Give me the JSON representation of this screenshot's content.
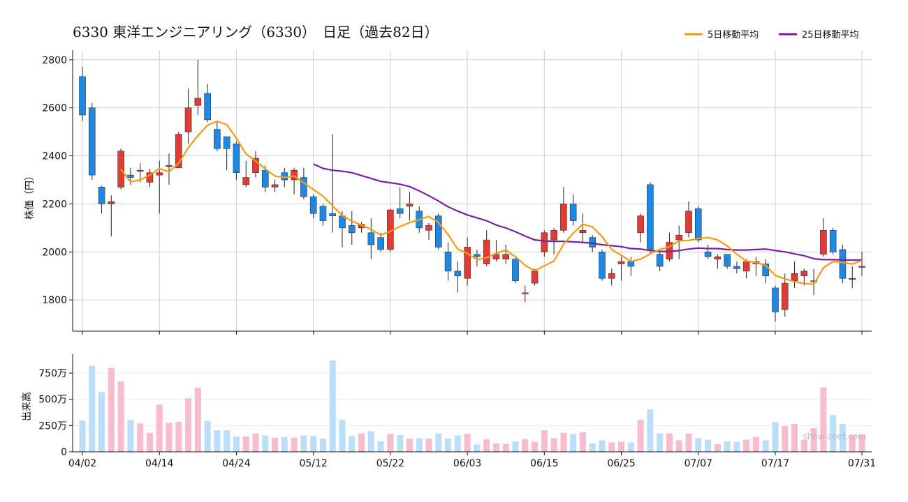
{
  "chart_data": [
    {
      "type": "candlestick",
      "title": "6330 東洋エンジニアリング（6330）　日足（過去82日）",
      "ylabel": "株価（円）",
      "ylim": [
        1670,
        2840
      ],
      "yticks": [
        1800,
        2000,
        2200,
        2400,
        2600,
        2800
      ],
      "grid": true,
      "legend_position": "top-right",
      "x_tick_labels": [
        "04/02",
        "04/14",
        "04/24",
        "05/12",
        "05/22",
        "06/03",
        "06/15",
        "06/25",
        "07/07",
        "07/17",
        "07/31"
      ],
      "x_tick_index": [
        0,
        8,
        16,
        24,
        32,
        40,
        48,
        56,
        64,
        72,
        81
      ],
      "colors": {
        "up": "#e53935",
        "down": "#1e88e5",
        "ma5": "#f39c12",
        "ma25": "#7b1fa2"
      },
      "candles": [
        [
          2730,
          2770,
          2545,
          2570
        ],
        [
          2600,
          2620,
          2300,
          2320
        ],
        [
          2270,
          2275,
          2160,
          2200
        ],
        [
          2200,
          2235,
          2065,
          2210
        ],
        [
          2270,
          2430,
          2260,
          2420
        ],
        [
          2320,
          2350,
          2280,
          2310
        ],
        [
          2340,
          2370,
          2290,
          2340
        ],
        [
          2290,
          2345,
          2270,
          2330
        ],
        [
          2320,
          2380,
          2160,
          2330
        ],
        [
          2360,
          2410,
          2280,
          2360
        ],
        [
          2350,
          2500,
          2350,
          2490
        ],
        [
          2500,
          2680,
          2450,
          2600
        ],
        [
          2610,
          2800,
          2570,
          2640
        ],
        [
          2660,
          2700,
          2540,
          2550
        ],
        [
          2510,
          2540,
          2420,
          2430
        ],
        [
          2480,
          2480,
          2340,
          2430
        ],
        [
          2450,
          2460,
          2300,
          2330
        ],
        [
          2280,
          2380,
          2270,
          2310
        ],
        [
          2330,
          2420,
          2310,
          2390
        ],
        [
          2340,
          2360,
          2250,
          2270
        ],
        [
          2270,
          2300,
          2250,
          2280
        ],
        [
          2330,
          2350,
          2270,
          2300
        ],
        [
          2300,
          2350,
          2240,
          2340
        ],
        [
          2310,
          2350,
          2220,
          2230
        ],
        [
          2230,
          2240,
          2140,
          2160
        ],
        [
          2190,
          2200,
          2110,
          2130
        ],
        [
          2160,
          2490,
          2080,
          2150
        ],
        [
          2150,
          2170,
          2020,
          2100
        ],
        [
          2110,
          2170,
          2030,
          2080
        ],
        [
          2100,
          2125,
          2080,
          2115
        ],
        [
          2080,
          2140,
          1970,
          2030
        ],
        [
          2060,
          2080,
          2000,
          2010
        ],
        [
          2010,
          2180,
          2000,
          2175
        ],
        [
          2180,
          2270,
          2140,
          2160
        ],
        [
          2190,
          2250,
          2130,
          2200
        ],
        [
          2170,
          2190,
          2080,
          2100
        ],
        [
          2090,
          2120,
          2050,
          2110
        ],
        [
          2150,
          2160,
          2010,
          2020
        ],
        [
          2000,
          2040,
          1880,
          1920
        ],
        [
          1920,
          1960,
          1830,
          1900
        ],
        [
          1890,
          2060,
          1860,
          2020
        ],
        [
          1990,
          2010,
          1940,
          1980
        ],
        [
          1950,
          2090,
          1940,
          2050
        ],
        [
          1970,
          2050,
          1960,
          1990
        ],
        [
          1970,
          2030,
          1950,
          1990
        ],
        [
          1970,
          1980,
          1870,
          1880
        ],
        [
          1830,
          1860,
          1790,
          1830
        ],
        [
          1870,
          1930,
          1860,
          1920
        ],
        [
          2000,
          2090,
          1980,
          2080
        ],
        [
          2050,
          2100,
          1990,
          2090
        ],
        [
          2090,
          2270,
          2080,
          2200
        ],
        [
          2200,
          2240,
          2110,
          2130
        ],
        [
          2080,
          2160,
          2040,
          2090
        ],
        [
          2060,
          2070,
          2000,
          2020
        ],
        [
          2000,
          2010,
          1880,
          1890
        ],
        [
          1890,
          1930,
          1860,
          1910
        ],
        [
          1950,
          1980,
          1880,
          1960
        ],
        [
          1960,
          1980,
          1900,
          1940
        ],
        [
          2080,
          2160,
          2040,
          2150
        ],
        [
          2280,
          2290,
          1990,
          2010
        ],
        [
          1990,
          2000,
          1920,
          1940
        ],
        [
          1970,
          2080,
          1960,
          2040
        ],
        [
          2050,
          2110,
          1970,
          2070
        ],
        [
          2080,
          2210,
          2060,
          2170
        ],
        [
          2180,
          2190,
          2040,
          2050
        ],
        [
          2000,
          2030,
          1970,
          1980
        ],
        [
          1970,
          1990,
          1930,
          1980
        ],
        [
          1990,
          1990,
          1930,
          1940
        ],
        [
          1940,
          1960,
          1910,
          1930
        ],
        [
          1920,
          1970,
          1890,
          1960
        ],
        [
          1950,
          1980,
          1900,
          1960
        ],
        [
          1950,
          1970,
          1870,
          1900
        ],
        [
          1850,
          1860,
          1710,
          1750
        ],
        [
          1760,
          1910,
          1730,
          1870
        ],
        [
          1880,
          1960,
          1850,
          1910
        ],
        [
          1900,
          1930,
          1860,
          1920
        ],
        [
          1880,
          1930,
          1820,
          1880
        ],
        [
          1990,
          2140,
          1980,
          2090
        ],
        [
          2090,
          2100,
          1990,
          2000
        ],
        [
          2010,
          2030,
          1870,
          1890
        ],
        [
          1890,
          1940,
          1850,
          1890
        ],
        [
          1940,
          2000,
          1900,
          1940
        ]
      ],
      "ma5": [
        null,
        null,
        null,
        null,
        2344,
        2292,
        2300,
        2320,
        2347,
        2334,
        2370,
        2434,
        2484,
        2528,
        2544,
        2530,
        2474,
        2408,
        2378,
        2346,
        2316,
        2310,
        2316,
        2288,
        2260,
        2232,
        2192,
        2152,
        2128,
        2112,
        2094,
        2070,
        2086,
        2106,
        2122,
        2134,
        2148,
        2122,
        2072,
        2012,
        1994,
        1968,
        1976,
        1994,
        2008,
        1980,
        1944,
        1922,
        1942,
        1962,
        2032,
        2078,
        2116,
        2104,
        2064,
        2010,
        1986,
        1960,
        1970,
        1992,
        2010,
        2022,
        2046,
        2048,
        2056,
        2060,
        2050,
        2026,
        1990,
        1962,
        1956,
        1944,
        1902,
        1888,
        1876,
        1868,
        1866,
        1934,
        1960,
        1956,
        1950,
        1964
      ],
      "ma25": [
        null,
        null,
        null,
        null,
        null,
        null,
        null,
        null,
        null,
        null,
        null,
        null,
        null,
        null,
        null,
        null,
        null,
        null,
        null,
        null,
        null,
        null,
        null,
        null,
        2366,
        2348,
        2340,
        2336,
        2330,
        2318,
        2306,
        2294,
        2288,
        2282,
        2272,
        2254,
        2234,
        2212,
        2188,
        2170,
        2154,
        2142,
        2130,
        2112,
        2100,
        2084,
        2066,
        2050,
        2046,
        2044,
        2044,
        2042,
        2040,
        2036,
        2030,
        2026,
        2022,
        2014,
        2012,
        2006,
        2002,
        2002,
        2006,
        2012,
        2016,
        2014,
        2014,
        2010,
        2008,
        2008,
        2010,
        2012,
        2006,
        2000,
        1992,
        1984,
        1972,
        1968,
        1968,
        1966,
        1966,
        1966
      ],
      "series": [
        {
          "name": "5日移動平均"
        },
        {
          "name": "25日移動平均"
        }
      ]
    },
    {
      "type": "bar",
      "ylabel": "出来高",
      "ylim": [
        0,
        9300000
      ],
      "yticks": [
        0,
        2500000,
        5000000,
        7500000
      ],
      "ytick_labels": [
        "0",
        "250万",
        "500万",
        "750万"
      ],
      "colors": {
        "up": "#f8bbd0",
        "down": "#bbdefb"
      },
      "values": [
        300,
        820,
        570,
        800,
        670,
        305,
        270,
        180,
        450,
        275,
        285,
        510,
        610,
        295,
        205,
        205,
        145,
        145,
        175,
        155,
        135,
        140,
        135,
        155,
        150,
        125,
        870,
        305,
        150,
        175,
        195,
        100,
        170,
        160,
        125,
        130,
        125,
        175,
        125,
        155,
        170,
        70,
        120,
        80,
        75,
        100,
        120,
        95,
        205,
        130,
        180,
        170,
        185,
        80,
        110,
        90,
        95,
        90,
        305,
        405,
        175,
        175,
        110,
        175,
        130,
        115,
        75,
        100,
        95,
        115,
        140,
        110,
        285,
        245,
        265,
        115,
        225,
        615,
        350,
        265,
        160,
        160
      ],
      "value_unit": "10000"
    }
  ],
  "watermark": "show-zeet.com"
}
